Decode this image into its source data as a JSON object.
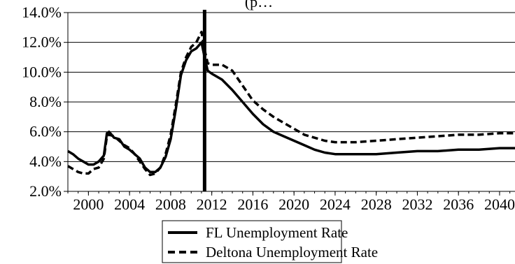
{
  "chart_data": {
    "type": "line",
    "title": "(p…",
    "xlabel": "",
    "ylabel": "",
    "xlim": [
      1998,
      2041.5
    ],
    "ylim": [
      0.02,
      0.14
    ],
    "y_ticks": [
      0.02,
      0.04,
      0.06,
      0.08,
      0.1,
      0.12,
      0.14
    ],
    "y_tick_labels": [
      "2.0%",
      "4.0%",
      "6.0%",
      "8.0%",
      "10.0%",
      "12.0%",
      "14.0%"
    ],
    "x_ticks": [
      2000,
      2004,
      2008,
      2012,
      2016,
      2020,
      2024,
      2028,
      2032,
      2036,
      2040
    ],
    "x_tick_labels": [
      "2000",
      "2004",
      "2008",
      "2012",
      "2016",
      "2020",
      "2024",
      "2028",
      "2032",
      "2036",
      "2040"
    ],
    "grid": "horizontal",
    "legend_position": "bottom",
    "vertical_marker_x": 2011.3,
    "series": [
      {
        "name": "FL Unemployment Rate",
        "style": "solid",
        "color": "#000000",
        "points": [
          [
            1998.0,
            0.047
          ],
          [
            1998.5,
            0.045
          ],
          [
            1999.0,
            0.042
          ],
          [
            1999.5,
            0.04
          ],
          [
            2000.0,
            0.038
          ],
          [
            2000.5,
            0.038
          ],
          [
            2001.0,
            0.04
          ],
          [
            2001.5,
            0.044
          ],
          [
            2001.8,
            0.059
          ],
          [
            2002.0,
            0.06
          ],
          [
            2002.5,
            0.056
          ],
          [
            2003.0,
            0.055
          ],
          [
            2003.5,
            0.05
          ],
          [
            2004.0,
            0.048
          ],
          [
            2004.5,
            0.045
          ],
          [
            2005.0,
            0.042
          ],
          [
            2005.5,
            0.036
          ],
          [
            2006.0,
            0.033
          ],
          [
            2006.5,
            0.033
          ],
          [
            2007.0,
            0.036
          ],
          [
            2007.5,
            0.043
          ],
          [
            2008.0,
            0.055
          ],
          [
            2008.5,
            0.075
          ],
          [
            2009.0,
            0.098
          ],
          [
            2009.5,
            0.108
          ],
          [
            2010.0,
            0.114
          ],
          [
            2010.5,
            0.116
          ],
          [
            2011.0,
            0.12
          ],
          [
            2011.3,
            0.11
          ],
          [
            2011.6,
            0.101
          ],
          [
            2012.0,
            0.099
          ],
          [
            2013.0,
            0.095
          ],
          [
            2014.0,
            0.088
          ],
          [
            2015.0,
            0.08
          ],
          [
            2016.0,
            0.072
          ],
          [
            2017.0,
            0.065
          ],
          [
            2018.0,
            0.06
          ],
          [
            2019.0,
            0.057
          ],
          [
            2020.0,
            0.054
          ],
          [
            2021.0,
            0.051
          ],
          [
            2022.0,
            0.048
          ],
          [
            2023.0,
            0.046
          ],
          [
            2024.0,
            0.045
          ],
          [
            2025.0,
            0.045
          ],
          [
            2026.0,
            0.045
          ],
          [
            2028.0,
            0.045
          ],
          [
            2030.0,
            0.046
          ],
          [
            2032.0,
            0.047
          ],
          [
            2034.0,
            0.047
          ],
          [
            2036.0,
            0.048
          ],
          [
            2038.0,
            0.048
          ],
          [
            2040.0,
            0.049
          ],
          [
            2041.5,
            0.049
          ]
        ]
      },
      {
        "name": "Deltona Unemployment Rate",
        "style": "dashed",
        "color": "#000000",
        "points": [
          [
            1998.0,
            0.037
          ],
          [
            1998.5,
            0.035
          ],
          [
            1999.0,
            0.033
          ],
          [
            1999.5,
            0.032
          ],
          [
            2000.0,
            0.032
          ],
          [
            2000.5,
            0.035
          ],
          [
            2001.0,
            0.036
          ],
          [
            2001.5,
            0.042
          ],
          [
            2001.8,
            0.057
          ],
          [
            2002.0,
            0.058
          ],
          [
            2002.5,
            0.057
          ],
          [
            2003.0,
            0.054
          ],
          [
            2003.5,
            0.051
          ],
          [
            2004.0,
            0.049
          ],
          [
            2004.5,
            0.045
          ],
          [
            2005.0,
            0.04
          ],
          [
            2005.5,
            0.035
          ],
          [
            2006.0,
            0.031
          ],
          [
            2006.5,
            0.032
          ],
          [
            2007.0,
            0.036
          ],
          [
            2007.5,
            0.045
          ],
          [
            2008.0,
            0.058
          ],
          [
            2008.5,
            0.078
          ],
          [
            2009.0,
            0.1
          ],
          [
            2009.5,
            0.11
          ],
          [
            2010.0,
            0.117
          ],
          [
            2010.5,
            0.12
          ],
          [
            2011.0,
            0.127
          ],
          [
            2011.3,
            0.115
          ],
          [
            2011.6,
            0.106
          ],
          [
            2012.0,
            0.105
          ],
          [
            2013.0,
            0.105
          ],
          [
            2014.0,
            0.101
          ],
          [
            2015.0,
            0.091
          ],
          [
            2016.0,
            0.081
          ],
          [
            2017.0,
            0.075
          ],
          [
            2018.0,
            0.07
          ],
          [
            2019.0,
            0.066
          ],
          [
            2020.0,
            0.062
          ],
          [
            2021.0,
            0.058
          ],
          [
            2022.0,
            0.056
          ],
          [
            2023.0,
            0.054
          ],
          [
            2024.0,
            0.053
          ],
          [
            2025.0,
            0.053
          ],
          [
            2026.0,
            0.053
          ],
          [
            2028.0,
            0.054
          ],
          [
            2030.0,
            0.055
          ],
          [
            2032.0,
            0.056
          ],
          [
            2034.0,
            0.057
          ],
          [
            2036.0,
            0.058
          ],
          [
            2038.0,
            0.058
          ],
          [
            2040.0,
            0.059
          ],
          [
            2041.5,
            0.059
          ]
        ]
      }
    ]
  }
}
